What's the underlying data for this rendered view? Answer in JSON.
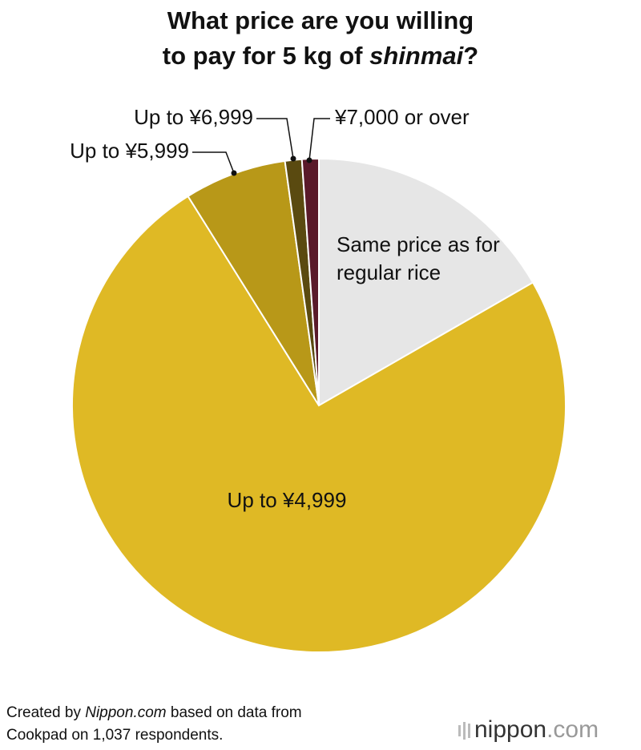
{
  "chart_data": {
    "type": "pie",
    "title": {
      "line1": "What price are you willing",
      "line2": "to pay for 5 kg of",
      "italic": "shinmai",
      "end": "?"
    },
    "categories": [
      "Same price as for regular rice",
      "Up to ¥4,999",
      "Up to ¥5,999",
      "Up to ¥6,999",
      "¥7,000 or over"
    ],
    "values": [
      16.7,
      74.4,
      6.7,
      1.1,
      1.1
    ],
    "colors": [
      "#e6e6e6",
      "#dfb925",
      "#b89818",
      "#5a4a10",
      "#5a1a2a"
    ],
    "source": {
      "line1_start": "Created by",
      "line1_italic": "Nippon.com",
      "line1_end": "based on data from",
      "line2": "Cookpad on 1,037 respondents."
    },
    "logo": {
      "name": "nippon",
      "suffix": ".com"
    }
  }
}
